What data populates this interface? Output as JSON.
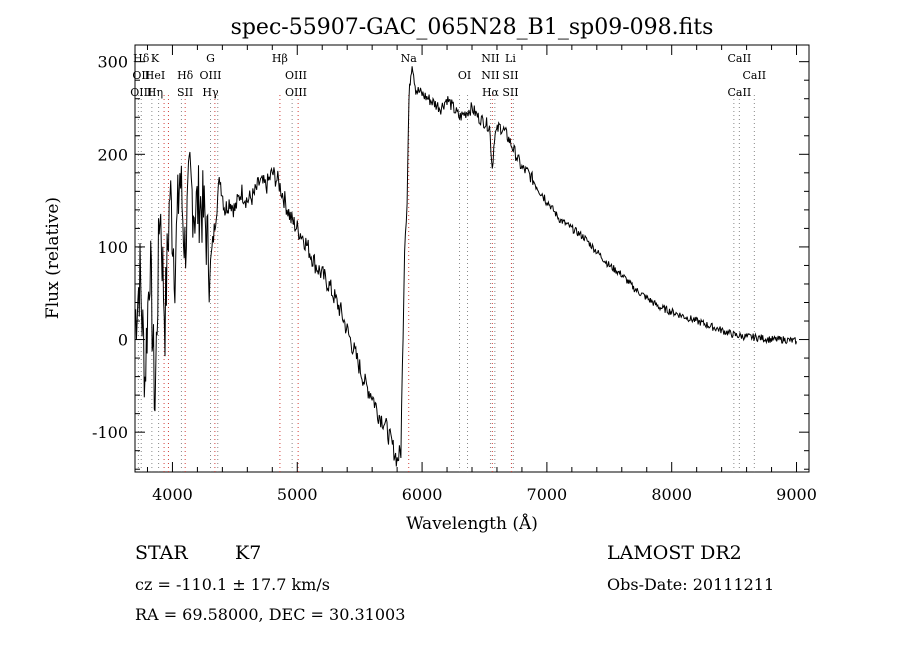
{
  "chart_data": {
    "type": "line",
    "title": "spec-55907-GAC_065N28_B1_sp09-098.fits",
    "xlabel": "Wavelength (Å)",
    "ylabel": "Flux (relative)",
    "xlim": [
      3700,
      9100
    ],
    "ylim": [
      -143,
      318
    ],
    "xticks": [
      4000,
      5000,
      6000,
      7000,
      8000,
      9000
    ],
    "xtick_labels": [
      "4000",
      "5000",
      "6000",
      "7000",
      "8000",
      "9000"
    ],
    "yticks": [
      -100,
      0,
      100,
      200,
      300
    ],
    "ytick_labels": [
      "-100",
      "0",
      "100",
      "200",
      "300"
    ],
    "grid": false,
    "series": [
      {
        "x": [
          3700,
          3740,
          3780,
          3820,
          3860,
          3900,
          3940,
          3980,
          4020,
          4060,
          4100,
          4140,
          4180,
          4220,
          4260,
          4300,
          4340,
          4380,
          4420,
          4460,
          4500,
          4550,
          4600,
          4650,
          4700,
          4750,
          4800,
          4850,
          4900,
          4950,
          5000,
          5050,
          5100,
          5150,
          5200,
          5250,
          5300,
          5350,
          5400,
          5450,
          5500,
          5550,
          5600,
          5650,
          5700,
          5750,
          5800,
          5830,
          5860,
          5880,
          5895,
          5905,
          5920,
          5950,
          6000,
          6050,
          6100,
          6150,
          6200,
          6250,
          6300,
          6350,
          6400,
          6450,
          6500,
          6540,
          6563,
          6580,
          6620,
          6660,
          6700,
          6750,
          6800,
          6850,
          6900,
          6950,
          7000,
          7100,
          7200,
          7300,
          7400,
          7500,
          7600,
          7700,
          7800,
          7900,
          8000,
          8100,
          8200,
          8300,
          8400,
          8500,
          8600,
          8700,
          8800,
          8900,
          9000
        ],
        "y": [
          20,
          70,
          -40,
          90,
          -70,
          150,
          20,
          160,
          80,
          180,
          100,
          170,
          140,
          150,
          130,
          75,
          125,
          175,
          140,
          150,
          140,
          160,
          150,
          155,
          170,
          165,
          180,
          170,
          150,
          130,
          120,
          110,
          95,
          80,
          70,
          60,
          45,
          30,
          10,
          -10,
          -30,
          -50,
          -60,
          -80,
          -90,
          -110,
          -130,
          -120,
          100,
          150,
          260,
          280,
          300,
          270,
          265,
          260,
          255,
          250,
          260,
          250,
          240,
          245,
          250,
          240,
          235,
          230,
          185,
          220,
          230,
          225,
          215,
          200,
          185,
          180,
          170,
          160,
          150,
          130,
          120,
          110,
          95,
          80,
          70,
          55,
          45,
          35,
          30,
          25,
          20,
          15,
          10,
          5,
          3,
          2,
          0,
          0,
          -2
        ]
      }
    ],
    "line_labels": [
      {
        "x": 3750,
        "lines": [
          "Hδ",
          "OII",
          "OIII"
        ]
      },
      {
        "x": 3860,
        "lines": [
          "K",
          "HeI",
          "Hη"
        ]
      },
      {
        "x": 4102,
        "lines": [
          "",
          "Hδ",
          "SII"
        ]
      },
      {
        "x": 4305,
        "lines": [
          "G",
          "OIII",
          "Hγ"
        ]
      },
      {
        "x": 4861,
        "lines": [
          "Hβ",
          "",
          ""
        ]
      },
      {
        "x": 4990,
        "lines": [
          "",
          "OIII",
          "OIII"
        ]
      },
      {
        "x": 5893,
        "lines": [
          "Na",
          "",
          ""
        ]
      },
      {
        "x": 6340,
        "lines": [
          "",
          "OI",
          ""
        ]
      },
      {
        "x": 6548,
        "lines": [
          "NII",
          "NII",
          "Hα"
        ]
      },
      {
        "x": 6708,
        "lines": [
          "Li",
          "SII",
          "SII"
        ]
      },
      {
        "x": 8542,
        "lines": [
          "CaII",
          "",
          "CaII"
        ]
      },
      {
        "x": 8662,
        "lines": [
          "",
          "CaII",
          ""
        ]
      }
    ],
    "marker_lines_red": [
      3933,
      3968,
      4102,
      4340,
      4861,
      5007,
      5893,
      6563,
      6716
    ],
    "marker_lines_gray": [
      3727,
      3750,
      3835,
      3889,
      4072,
      4305,
      4363,
      4959,
      6300,
      6364,
      6548,
      6583,
      6731,
      8498,
      8542,
      8662
    ]
  },
  "info": {
    "object_type": "STAR",
    "subclass": "K7",
    "survey": "LAMOST DR2",
    "cz": "cz = -110.1 ± 17.7 km/s",
    "obs_date": "Obs-Date: 20111211",
    "radec": "RA =  69.58000, DEC =  30.31003"
  },
  "colors": {
    "spectrum": "#000000",
    "red_markers": "#d0403a",
    "gray_markers": "#888888"
  }
}
